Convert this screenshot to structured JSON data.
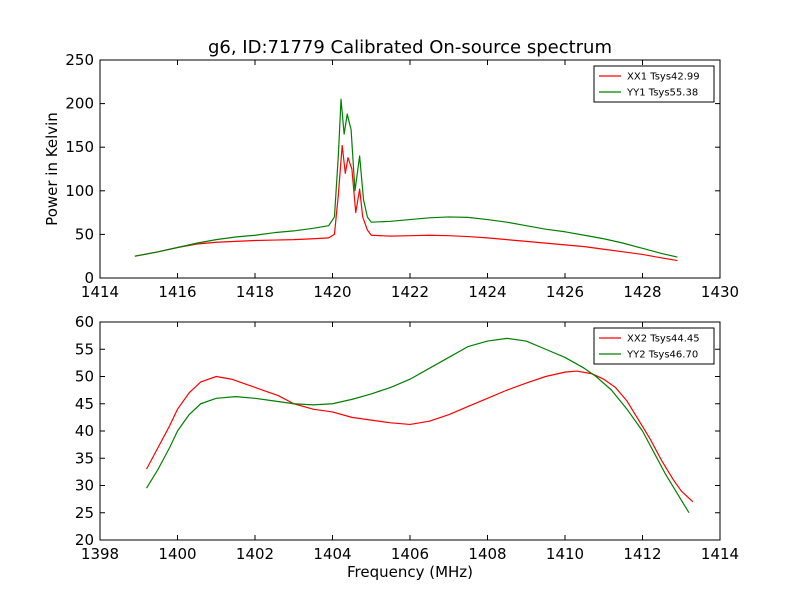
{
  "figure": {
    "title": "g6, ID:71779 Calibrated On-source spectrum"
  },
  "chart_data": [
    {
      "type": "line",
      "title": "g6, ID:71779 Calibrated On-source spectrum",
      "xlabel": "",
      "ylabel": "Power in Kelvin",
      "xlim": [
        1414,
        1430
      ],
      "ylim": [
        0,
        250
      ],
      "xticks": [
        "1414",
        "1416",
        "1418",
        "1420",
        "1422",
        "1424",
        "1426",
        "1428",
        "1430"
      ],
      "yticks": [
        "0",
        "50",
        "100",
        "150",
        "200",
        "250"
      ],
      "grid": false,
      "legend_position": "top-right",
      "series": [
        {
          "name": "XX1 Tsys42.99",
          "color": "#ff0000",
          "points": [
            [
              1414.9,
              25
            ],
            [
              1415.5,
              30
            ],
            [
              1416.0,
              35
            ],
            [
              1416.5,
              39
            ],
            [
              1417.0,
              41
            ],
            [
              1417.5,
              42
            ],
            [
              1418.0,
              43
            ],
            [
              1418.5,
              43.5
            ],
            [
              1419.0,
              44
            ],
            [
              1419.5,
              45
            ],
            [
              1419.9,
              46
            ],
            [
              1420.05,
              50
            ],
            [
              1420.15,
              95
            ],
            [
              1420.25,
              152
            ],
            [
              1420.33,
              120
            ],
            [
              1420.4,
              138
            ],
            [
              1420.5,
              125
            ],
            [
              1420.6,
              75
            ],
            [
              1420.7,
              102
            ],
            [
              1420.78,
              70
            ],
            [
              1420.9,
              55
            ],
            [
              1421.0,
              49
            ],
            [
              1421.5,
              48
            ],
            [
              1422.0,
              48.5
            ],
            [
              1422.5,
              49
            ],
            [
              1423.0,
              48.5
            ],
            [
              1423.5,
              47.5
            ],
            [
              1424.0,
              46
            ],
            [
              1424.5,
              44
            ],
            [
              1425.0,
              42
            ],
            [
              1425.5,
              40
            ],
            [
              1426.0,
              38
            ],
            [
              1426.5,
              36
            ],
            [
              1427.0,
              33
            ],
            [
              1427.5,
              30
            ],
            [
              1428.0,
              27
            ],
            [
              1428.5,
              23
            ],
            [
              1428.9,
              20
            ]
          ]
        },
        {
          "name": "YY1 Tsys55.38",
          "color": "#008000",
          "points": [
            [
              1414.9,
              25
            ],
            [
              1415.5,
              30
            ],
            [
              1416.0,
              35
            ],
            [
              1416.5,
              40
            ],
            [
              1417.0,
              44
            ],
            [
              1417.5,
              47
            ],
            [
              1418.0,
              49
            ],
            [
              1418.5,
              52
            ],
            [
              1419.0,
              54
            ],
            [
              1419.5,
              57
            ],
            [
              1419.9,
              60
            ],
            [
              1420.05,
              70
            ],
            [
              1420.15,
              140
            ],
            [
              1420.22,
              205
            ],
            [
              1420.3,
              165
            ],
            [
              1420.38,
              188
            ],
            [
              1420.48,
              170
            ],
            [
              1420.58,
              100
            ],
            [
              1420.7,
              140
            ],
            [
              1420.8,
              90
            ],
            [
              1420.9,
              70
            ],
            [
              1421.0,
              64
            ],
            [
              1421.5,
              65
            ],
            [
              1422.0,
              67
            ],
            [
              1422.5,
              69
            ],
            [
              1423.0,
              70
            ],
            [
              1423.5,
              69.5
            ],
            [
              1424.0,
              67
            ],
            [
              1424.5,
              64
            ],
            [
              1425.0,
              60
            ],
            [
              1425.5,
              56
            ],
            [
              1426.0,
              53
            ],
            [
              1426.5,
              49
            ],
            [
              1427.0,
              45
            ],
            [
              1427.5,
              40
            ],
            [
              1428.0,
              34
            ],
            [
              1428.5,
              28
            ],
            [
              1428.9,
              24
            ]
          ]
        }
      ]
    },
    {
      "type": "line",
      "title": "",
      "xlabel": "Frequency (MHz)",
      "ylabel": "",
      "xlim": [
        1398,
        1414
      ],
      "ylim": [
        20,
        60
      ],
      "xticks": [
        "1398",
        "1400",
        "1402",
        "1404",
        "1406",
        "1408",
        "1410",
        "1412",
        "1414"
      ],
      "yticks": [
        "20",
        "25",
        "30",
        "35",
        "40",
        "45",
        "50",
        "55",
        "60"
      ],
      "grid": false,
      "legend_position": "top-right",
      "series": [
        {
          "name": "XX2 Tsys44.45",
          "color": "#ff0000",
          "points": [
            [
              1399.2,
              33
            ],
            [
              1399.5,
              37
            ],
            [
              1399.8,
              41
            ],
            [
              1400.0,
              44
            ],
            [
              1400.3,
              47
            ],
            [
              1400.6,
              49
            ],
            [
              1401.0,
              50
            ],
            [
              1401.4,
              49.5
            ],
            [
              1401.8,
              48.5
            ],
            [
              1402.2,
              47.5
            ],
            [
              1402.6,
              46.5
            ],
            [
              1403.0,
              45
            ],
            [
              1403.5,
              44
            ],
            [
              1404.0,
              43.5
            ],
            [
              1404.5,
              42.5
            ],
            [
              1405.0,
              42
            ],
            [
              1405.5,
              41.5
            ],
            [
              1406.0,
              41.2
            ],
            [
              1406.5,
              41.8
            ],
            [
              1407.0,
              43
            ],
            [
              1407.5,
              44.5
            ],
            [
              1408.0,
              46
            ],
            [
              1408.5,
              47.5
            ],
            [
              1409.0,
              48.8
            ],
            [
              1409.5,
              50
            ],
            [
              1410.0,
              50.8
            ],
            [
              1410.3,
              51
            ],
            [
              1410.7,
              50.5
            ],
            [
              1411.0,
              49.5
            ],
            [
              1411.3,
              48
            ],
            [
              1411.6,
              45.5
            ],
            [
              1411.9,
              42
            ],
            [
              1412.2,
              38.5
            ],
            [
              1412.5,
              34.5
            ],
            [
              1412.8,
              31
            ],
            [
              1413.0,
              29
            ],
            [
              1413.3,
              27
            ]
          ]
        },
        {
          "name": "YY2 Tsys46.70",
          "color": "#008000",
          "points": [
            [
              1399.2,
              29.5
            ],
            [
              1399.5,
              33
            ],
            [
              1399.8,
              37
            ],
            [
              1400.0,
              40
            ],
            [
              1400.3,
              43
            ],
            [
              1400.6,
              45
            ],
            [
              1401.0,
              46
            ],
            [
              1401.5,
              46.3
            ],
            [
              1402.0,
              46
            ],
            [
              1402.5,
              45.5
            ],
            [
              1403.0,
              45
            ],
            [
              1403.5,
              44.8
            ],
            [
              1404.0,
              45
            ],
            [
              1404.5,
              45.8
            ],
            [
              1405.0,
              46.8
            ],
            [
              1405.5,
              48
            ],
            [
              1406.0,
              49.5
            ],
            [
              1406.5,
              51.5
            ],
            [
              1407.0,
              53.5
            ],
            [
              1407.5,
              55.5
            ],
            [
              1408.0,
              56.5
            ],
            [
              1408.5,
              57
            ],
            [
              1409.0,
              56.5
            ],
            [
              1409.5,
              55
            ],
            [
              1410.0,
              53.5
            ],
            [
              1410.5,
              51.5
            ],
            [
              1410.8,
              50
            ],
            [
              1411.2,
              47.5
            ],
            [
              1411.6,
              44
            ],
            [
              1412.0,
              40
            ],
            [
              1412.3,
              36
            ],
            [
              1412.6,
              32
            ],
            [
              1412.9,
              28.5
            ],
            [
              1413.2,
              25
            ]
          ]
        }
      ]
    }
  ]
}
